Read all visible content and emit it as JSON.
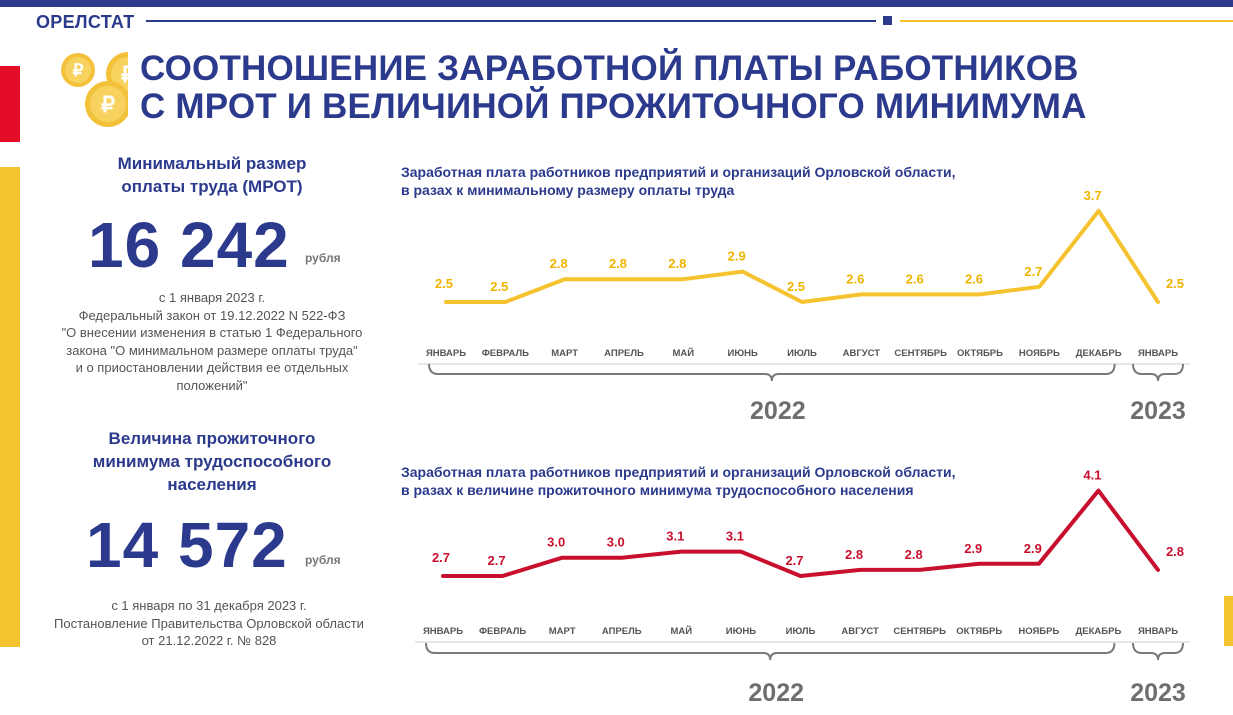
{
  "header": {
    "brand": "ОРЕЛСТАТ"
  },
  "title_line1": "СООТНОШЕНИЕ ЗАРАБОТНОЙ ПЛАТЫ РАБОТНИКОВ",
  "title_line2": "С МРОТ И ВЕЛИЧИНОЙ ПРОЖИТОЧНОГО МИНИМУМА",
  "mrot": {
    "heading_l1": "Минимальный размер",
    "heading_l2": "оплаты труда (МРОТ)",
    "value": "16 242",
    "unit": "рубля",
    "note_l1": "с 1 января 2023 г.",
    "note_l2": "Федеральный закон от 19.12.2022 N 522-ФЗ",
    "note_l3": "\"О внесении изменения в статью 1 Федерального",
    "note_l4": "закона \"О минимальном размере оплаты труда\"",
    "note_l5": "и о приостановлении действия ее отдельных",
    "note_l6": "положений\""
  },
  "subsistence": {
    "heading_l1": "Величина прожиточного",
    "heading_l2": "минимума трудоспособного",
    "heading_l3": "населения",
    "value": "14 572",
    "unit": "рубля",
    "note_l1": "с 1 января по 31 декабря 2023 г.",
    "note_l2": "Постановление Правительства Орловской области",
    "note_l3": "от 21.12.2022 г. № 828"
  },
  "chart_data": [
    {
      "type": "line",
      "title_l1": "Заработная плата работников предприятий и организаций Орловской области,",
      "title_l2": "в разах к минимальному размеру оплаты труда",
      "categories": [
        "ЯНВАРЬ",
        "ФЕВРАЛЬ",
        "МАРТ",
        "АПРЕЛЬ",
        "МАЙ",
        "ИЮНЬ",
        "ИЮЛЬ",
        "АВГУСТ",
        "СЕНТЯБРЬ",
        "ОКТЯБРЬ",
        "НОЯБРЬ",
        "ДЕКАБРЬ",
        "ЯНВАРЬ"
      ],
      "values": [
        2.5,
        2.5,
        2.8,
        2.8,
        2.8,
        2.9,
        2.5,
        2.6,
        2.6,
        2.6,
        2.7,
        3.7,
        2.5
      ],
      "labels": [
        "2.5",
        "2.5",
        "2.8",
        "2.8",
        "2.8",
        "2.9",
        "2.5",
        "2.6",
        "2.6",
        "2.6",
        "2.7",
        "3.7",
        "2.5"
      ],
      "groups": [
        {
          "label": "2022",
          "from": 0,
          "to": 11
        },
        {
          "label": "2023",
          "from": 12,
          "to": 12
        }
      ],
      "color": "#f5c330",
      "label_color": "#f0b400"
    },
    {
      "type": "line",
      "title_l1": "Заработная плата работников предприятий и организаций Орловской области,",
      "title_l2": "в разах к величине прожиточного минимума трудоспособного населения",
      "categories": [
        "ЯНВАРЬ",
        "ФЕВРАЛЬ",
        "МАРТ",
        "АПРЕЛЬ",
        "МАЙ",
        "ИЮНЬ",
        "ИЮЛЬ",
        "АВГУСТ",
        "СЕНТЯБРЬ",
        "ОКТЯБРЬ",
        "НОЯБРЬ",
        "ДЕКАБРЬ",
        "ЯНВАРЬ"
      ],
      "values": [
        2.7,
        2.7,
        3.0,
        3.0,
        3.1,
        3.1,
        2.7,
        2.8,
        2.8,
        2.9,
        2.9,
        4.1,
        2.8
      ],
      "labels": [
        "2.7",
        "2.7",
        "3.0",
        "3.0",
        "3.1",
        "3.1",
        "2.7",
        "2.8",
        "2.8",
        "2.9",
        "2.9",
        "4.1",
        "2.8"
      ],
      "groups": [
        {
          "label": "2022",
          "from": 0,
          "to": 11
        },
        {
          "label": "2023",
          "from": 12,
          "to": 12
        }
      ],
      "color": "#c8102e",
      "label_color": "#c8102e"
    }
  ]
}
